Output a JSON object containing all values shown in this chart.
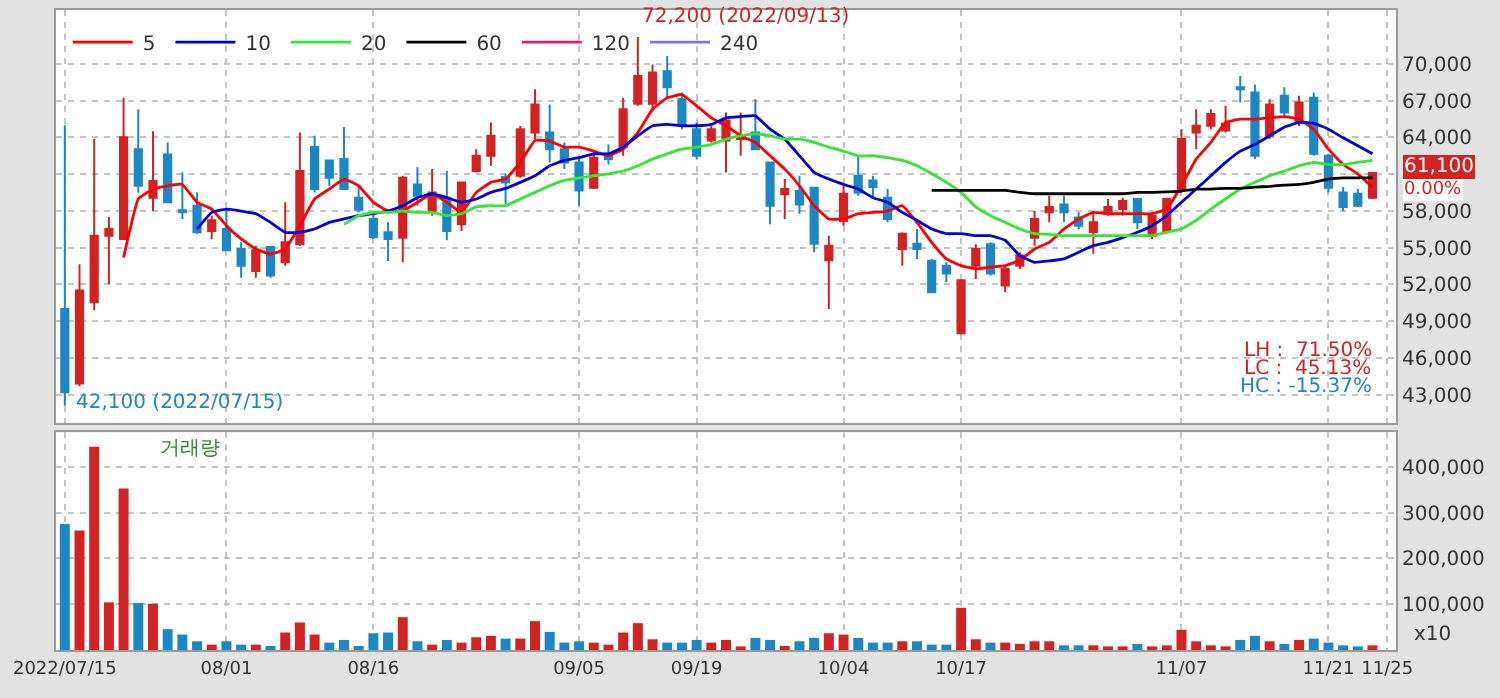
{
  "chart_data": [
    {
      "type": "candlestick",
      "categories": [
        null,
        null,
        null,
        null,
        null,
        null,
        null,
        null,
        null,
        null,
        null,
        null,
        null,
        null,
        null,
        null,
        null,
        null,
        null,
        null,
        null,
        null,
        null,
        null,
        null,
        null,
        null,
        null,
        null,
        null,
        null,
        null,
        null,
        null,
        null,
        null,
        null,
        null,
        null,
        null,
        null,
        null,
        null,
        null,
        null,
        null,
        null,
        null,
        null,
        null,
        null,
        null,
        null,
        null,
        null,
        null,
        null,
        null,
        null,
        null,
        null,
        null,
        null,
        null,
        null,
        null,
        null,
        null,
        null,
        null,
        null,
        null,
        null,
        null,
        null,
        null,
        null,
        null,
        null,
        null,
        null,
        null,
        null,
        null,
        null,
        null,
        null,
        null,
        null,
        null,
        null
      ],
      "ohlc": [
        [
          50000,
          65000,
          42100,
          43200
        ],
        [
          43900,
          53640,
          43700,
          51500
        ],
        [
          50540,
          63860,
          49890,
          55980
        ],
        [
          55980,
          57500,
          52010,
          56520
        ],
        [
          55700,
          67230,
          55700,
          64020
        ],
        [
          63040,
          66300,
          59510,
          60050
        ],
        [
          59080,
          64510,
          57990,
          60430
        ],
        [
          62610,
          63590,
          58700,
          58700
        ],
        [
          58050,
          61140,
          57340,
          57880
        ],
        [
          58420,
          59510,
          56140,
          56250
        ],
        [
          56360,
          57610,
          55700,
          57230
        ],
        [
          56520,
          57990,
          54730,
          54780
        ],
        [
          54890,
          55430,
          52550,
          53530
        ],
        [
          53100,
          55160,
          52550,
          54780
        ],
        [
          55050,
          55160,
          52550,
          52720
        ],
        [
          53800,
          58700,
          53530,
          55430
        ],
        [
          55270,
          64400,
          55160,
          61250
        ],
        [
          63210,
          64130,
          59510,
          59780
        ],
        [
          62120,
          62120,
          60050,
          60700
        ],
        [
          62230,
          64840,
          59780,
          59780
        ],
        [
          59080,
          60050,
          57880,
          58100
        ],
        [
          57340,
          57880,
          55700,
          55870
        ],
        [
          56250,
          57070,
          53910,
          55700
        ],
        [
          55810,
          60870,
          53800,
          60700
        ],
        [
          60160,
          61570,
          58420,
          59240
        ],
        [
          57990,
          61410,
          57610,
          59510
        ],
        [
          59080,
          61250,
          55600,
          56360
        ],
        [
          56900,
          60320,
          56360,
          60320
        ],
        [
          61250,
          63040,
          61140,
          62500
        ],
        [
          62500,
          65210,
          61680,
          64130
        ],
        [
          60760,
          61030,
          58530,
          60320
        ],
        [
          60870,
          64940,
          60700,
          64670
        ],
        [
          64400,
          67930,
          63860,
          66680
        ],
        [
          64400,
          66680,
          61960,
          63040
        ],
        [
          63040,
          63590,
          61410,
          61960
        ],
        [
          61960,
          62230,
          58420,
          59670
        ],
        [
          59890,
          62770,
          59780,
          62340
        ],
        [
          62660,
          63420,
          61790,
          62230
        ],
        [
          63210,
          67230,
          62500,
          66300
        ],
        [
          66740,
          72200,
          66580,
          69020
        ],
        [
          66740,
          69950,
          66140,
          69290
        ],
        [
          69400,
          70650,
          67120,
          68100
        ],
        [
          67120,
          67660,
          64670,
          64950
        ],
        [
          64670,
          65210,
          62230,
          62500
        ],
        [
          63750,
          64940,
          63590,
          64670
        ],
        [
          63750,
          66030,
          61140,
          65380
        ],
        [
          63860,
          66030,
          62500,
          64130
        ],
        [
          64400,
          67120,
          63040,
          63040
        ],
        [
          61960,
          61960,
          56900,
          58420
        ],
        [
          59350,
          60600,
          57340,
          59780
        ],
        [
          59620,
          60870,
          57770,
          58530
        ],
        [
          59890,
          59890,
          54620,
          55320
        ],
        [
          53970,
          55980,
          50000,
          55160
        ],
        [
          57170,
          60050,
          56790,
          59400
        ],
        [
          60870,
          62500,
          59240,
          59510
        ],
        [
          60490,
          60870,
          58970,
          59950
        ],
        [
          59080,
          59780,
          57070,
          57340
        ],
        [
          54890,
          56250,
          53530,
          56140
        ],
        [
          55320,
          56520,
          54080,
          54890
        ],
        [
          53910,
          54080,
          51360,
          51360
        ],
        [
          53530,
          53800,
          52170,
          52880
        ],
        [
          48010,
          52340,
          47900,
          52340
        ],
        [
          53530,
          55270,
          52450,
          54890
        ],
        [
          55270,
          55430,
          52720,
          52880
        ],
        [
          51900,
          53530,
          51360,
          53260
        ],
        [
          53530,
          54620,
          53260,
          54350
        ],
        [
          55810,
          57990,
          55160,
          57340
        ],
        [
          57880,
          59240,
          57070,
          58310
        ],
        [
          58530,
          59240,
          57070,
          57880
        ],
        [
          57450,
          57880,
          56520,
          56790
        ],
        [
          56250,
          57880,
          54510,
          57070
        ],
        [
          57880,
          58970,
          57610,
          58310
        ],
        [
          58150,
          59080,
          57610,
          58800
        ],
        [
          58970,
          58970,
          56520,
          57070
        ],
        [
          55980,
          57880,
          55700,
          57610
        ],
        [
          56360,
          59080,
          56250,
          58970
        ],
        [
          59780,
          64670,
          59510,
          63860
        ],
        [
          64400,
          66300,
          63040,
          64950
        ],
        [
          64950,
          66300,
          64670,
          65920
        ],
        [
          64560,
          66580,
          64400,
          65110
        ],
        [
          68100,
          69020,
          66850,
          67940
        ],
        [
          67660,
          68320,
          62230,
          62500
        ],
        [
          64130,
          67120,
          63860,
          66680
        ],
        [
          67390,
          68100,
          65760,
          66030
        ],
        [
          65210,
          67390,
          64940,
          66850
        ],
        [
          67230,
          67660,
          62500,
          62660
        ],
        [
          62500,
          62660,
          59510,
          59890
        ],
        [
          59510,
          59950,
          57990,
          58310
        ],
        [
          59400,
          59780,
          58310,
          58420
        ],
        [
          59080,
          61100,
          58970,
          61100
        ],
        null
      ],
      "colors": [
        "#1b87c4",
        "#d32222",
        "#d32222",
        "#d32222",
        "#d32222",
        "#1b87c4",
        "#d32222",
        "#1b87c4",
        "#1b87c4",
        "#1b87c4",
        "#d32222",
        "#1b87c4",
        "#1b87c4",
        "#d32222",
        "#1b87c4",
        "#d32222",
        "#d32222",
        "#1b87c4",
        "#1b87c4",
        "#1b87c4",
        "#1b87c4",
        "#1b87c4",
        "#1b87c4",
        "#d32222",
        "#1b87c4",
        "#d32222",
        "#1b87c4",
        "#d32222",
        "#d32222",
        "#d32222",
        "#1b87c4",
        "#d32222",
        "#d32222",
        "#1b87c4",
        "#1b87c4",
        "#1b87c4",
        "#d32222",
        "#1b87c4",
        "#d32222",
        "#d32222",
        "#d32222",
        "#1b87c4",
        "#1b87c4",
        "#1b87c4",
        "#d32222",
        "#d32222",
        "#d32222",
        "#1b87c4",
        "#1b87c4",
        "#d32222",
        "#1b87c4",
        "#1b87c4",
        "#d32222",
        "#d32222",
        "#1b87c4",
        "#1b87c4",
        "#1b87c4",
        "#d32222",
        "#1b87c4",
        "#1b87c4",
        "#1b87c4",
        "#d32222",
        "#d32222",
        "#1b87c4",
        "#d32222",
        "#d32222",
        "#d32222",
        "#d32222",
        "#1b87c4",
        "#1b87c4",
        "#d32222",
        "#d32222",
        "#d32222",
        "#1b87c4",
        "#d32222",
        "#d32222",
        "#d32222",
        "#d32222",
        "#d32222",
        "#d32222",
        "#1b87c4",
        "#1b87c4",
        "#d32222",
        "#1b87c4",
        "#d32222",
        "#1b87c4",
        "#1b87c4",
        "#1b87c4",
        "#1b87c4",
        "#d32222",
        null
      ],
      "series": [
        {
          "type": "line",
          "name": "5",
          "color": "#ff0000",
          "values": [
            null,
            null,
            null,
            null,
            54190,
            58970,
            59780,
            60050,
            60160,
            58700,
            58150,
            56790,
            55710,
            54890,
            54460,
            54890,
            56790,
            58970,
            59780,
            60600,
            60050,
            58700,
            57990,
            57990,
            58700,
            59400,
            58700,
            57880,
            59510,
            60330,
            60600,
            61960,
            63750,
            63700,
            63200,
            63200,
            62880,
            62500,
            63040,
            64400,
            66300,
            67230,
            67500,
            66580,
            65600,
            64950,
            64130,
            63590,
            62500,
            61410,
            60050,
            58420,
            57340,
            57340,
            57770,
            57880,
            57990,
            58420,
            57060,
            55430,
            54080,
            53530,
            53260,
            53420,
            53530,
            53970,
            54890,
            55430,
            56520,
            57340,
            57880,
            57770,
            57770,
            57770,
            57770,
            58150,
            60050,
            62230,
            63590,
            65220,
            65490,
            65490,
            65600,
            65700,
            65490,
            64670,
            63040,
            61790,
            61030,
            59940,
            null
          ]
        },
        {
          "type": "line",
          "name": "10",
          "color": "#0000dd",
          "values": [
            null,
            null,
            null,
            null,
            null,
            null,
            null,
            null,
            null,
            56520,
            57880,
            58150,
            57990,
            57770,
            57060,
            56250,
            56250,
            56520,
            57060,
            57340,
            57610,
            57770,
            57990,
            58420,
            59080,
            59400,
            59080,
            58700,
            58970,
            59510,
            59840,
            60330,
            60870,
            61680,
            62120,
            62340,
            62660,
            62660,
            63200,
            64130,
            64950,
            65060,
            64950,
            64950,
            65060,
            65600,
            65700,
            65760,
            64670,
            63860,
            62500,
            61140,
            60600,
            60160,
            59780,
            59080,
            58700,
            57880,
            57230,
            56520,
            56140,
            56140,
            55980,
            55980,
            55600,
            54350,
            53800,
            53910,
            54080,
            54620,
            55160,
            55430,
            55820,
            56250,
            56790,
            57610,
            58700,
            59780,
            60870,
            61960,
            62880,
            63420,
            64130,
            64840,
            65220,
            65160,
            64670,
            63970,
            63310,
            62660,
            null
          ]
        },
        {
          "type": "line",
          "name": "20",
          "color": "#33e633",
          "values": [
            null,
            null,
            null,
            null,
            null,
            null,
            null,
            null,
            null,
            null,
            null,
            null,
            null,
            null,
            null,
            null,
            null,
            null,
            null,
            56900,
            57610,
            57880,
            57880,
            57990,
            57880,
            57880,
            57610,
            57770,
            58320,
            58420,
            58420,
            58970,
            59510,
            60050,
            60490,
            60700,
            60870,
            61030,
            61250,
            61680,
            62230,
            62660,
            63040,
            63200,
            63420,
            63860,
            64130,
            64290,
            64130,
            63860,
            63860,
            63590,
            63200,
            62880,
            62500,
            62500,
            62340,
            62120,
            61680,
            61030,
            60330,
            59510,
            58320,
            57610,
            57060,
            56520,
            56140,
            56090,
            55980,
            55980,
            55980,
            55980,
            55980,
            55980,
            55980,
            56250,
            56520,
            57230,
            58150,
            58970,
            59780,
            60330,
            60870,
            61250,
            61680,
            61960,
            61790,
            61790,
            61960,
            62120,
            null
          ]
        },
        {
          "type": "line",
          "name": "60",
          "color": "#000000",
          "values": [
            null,
            null,
            null,
            null,
            null,
            null,
            null,
            null,
            null,
            null,
            null,
            null,
            null,
            null,
            null,
            null,
            null,
            null,
            null,
            null,
            null,
            null,
            null,
            null,
            null,
            null,
            null,
            null,
            null,
            null,
            null,
            null,
            null,
            null,
            null,
            null,
            null,
            null,
            null,
            null,
            null,
            null,
            null,
            null,
            null,
            null,
            null,
            null,
            null,
            null,
            null,
            null,
            null,
            null,
            null,
            null,
            null,
            null,
            null,
            59670,
            59670,
            59670,
            59670,
            59670,
            59670,
            59510,
            59400,
            59400,
            59400,
            59400,
            59400,
            59400,
            59400,
            59510,
            59510,
            59560,
            59620,
            59780,
            59780,
            59840,
            59840,
            59940,
            60000,
            60110,
            60160,
            60330,
            60600,
            60700,
            60700,
            60700,
            null
          ]
        },
        {
          "type": "line",
          "name": "120",
          "color": "#e8187a",
          "values": [
            null,
            null,
            null,
            null,
            null,
            null,
            null,
            null,
            null,
            null,
            null,
            null,
            null,
            null,
            null,
            null,
            null,
            null,
            null,
            null,
            null,
            null,
            null,
            null,
            null,
            null,
            null,
            null,
            null,
            null,
            null,
            null,
            null,
            null,
            null,
            null,
            null,
            null,
            null,
            null,
            null,
            null,
            null,
            null,
            null,
            null,
            null,
            null,
            null,
            null,
            null,
            null,
            null,
            null,
            null,
            null,
            null,
            null,
            null,
            null,
            null,
            null,
            null,
            null,
            null,
            null,
            null,
            null,
            null,
            null,
            null,
            null,
            null,
            null,
            null,
            null,
            null,
            null,
            null,
            null,
            null,
            null,
            null,
            null,
            null,
            null,
            null,
            null,
            null,
            null,
            null
          ]
        },
        {
          "type": "line",
          "name": "240",
          "color": "#8a6ee0",
          "values": [
            null,
            null,
            null,
            null,
            null,
            null,
            null,
            null,
            null,
            null,
            null,
            null,
            null,
            null,
            null,
            null,
            null,
            null,
            null,
            null,
            null,
            null,
            null,
            null,
            null,
            null,
            null,
            null,
            null,
            null,
            null,
            null,
            null,
            null,
            null,
            null,
            null,
            null,
            null,
            null,
            null,
            null,
            null,
            null,
            null,
            null,
            null,
            null,
            null,
            null,
            null,
            null,
            null,
            null,
            null,
            null,
            null,
            null,
            null,
            null,
            null,
            null,
            null,
            null,
            null,
            null,
            null,
            null,
            null,
            null,
            null,
            null,
            null,
            null,
            null,
            null,
            null,
            null,
            null,
            null,
            null,
            null,
            null,
            null,
            null,
            null,
            null,
            null,
            null,
            null,
            null
          ]
        }
      ],
      "ylim": [
        40700,
        74400
      ],
      "yticks": [
        {
          "value": 43000,
          "label": "43,000"
        },
        {
          "value": 46000,
          "label": "46,000"
        },
        {
          "value": 49000,
          "label": "49,000"
        },
        {
          "value": 52000,
          "label": "52,000"
        },
        {
          "value": 55000,
          "label": "55,000"
        },
        {
          "value": 58000,
          "label": "58,000"
        },
        {
          "value": 61000,
          "label": null
        },
        {
          "value": 64000,
          "label": "64,000"
        },
        {
          "value": 67000,
          "label": "67,000"
        },
        {
          "value": 70000,
          "label": "70,000"
        }
      ],
      "annotations": [
        "72,200 (2022/09/13)",
        "42,100 (2022/07/15)",
        "61,100",
        "0.00%",
        "LH :  71.50%",
        "LC :  45.13%",
        "HC : -15.37%"
      ],
      "grid": true,
      "legend": "top left",
      "tick_labels": "y"
    },
    {
      "type": "bar",
      "title": "거래량",
      "categories": [
        "2022/07/15",
        null,
        null,
        null,
        null,
        null,
        null,
        null,
        null,
        null,
        null,
        "08/01",
        null,
        null,
        null,
        null,
        null,
        null,
        null,
        null,
        null,
        "08/16",
        null,
        null,
        null,
        null,
        null,
        null,
        null,
        null,
        null,
        null,
        null,
        null,
        null,
        "09/05",
        null,
        null,
        null,
        null,
        null,
        null,
        null,
        "09/19",
        null,
        null,
        null,
        null,
        null,
        null,
        null,
        null,
        null,
        "10/04",
        null,
        null,
        null,
        null,
        null,
        null,
        null,
        "10/17",
        null,
        null,
        null,
        null,
        null,
        null,
        null,
        null,
        null,
        null,
        null,
        null,
        null,
        null,
        "11/07",
        null,
        null,
        null,
        null,
        null,
        null,
        null,
        null,
        null,
        "11/21",
        null,
        null,
        null,
        "11/25"
      ],
      "values": [
        275000,
        260600,
        443600,
        104000,
        352800,
        102500,
        101000,
        45400,
        33700,
        19000,
        11700,
        19000,
        11700,
        11700,
        8800,
        38100,
        60000,
        33700,
        16100,
        22000,
        8800,
        36600,
        38100,
        71700,
        19000,
        11700,
        22000,
        16100,
        27800,
        30700,
        24900,
        24900,
        63000,
        39500,
        16100,
        19000,
        16100,
        11700,
        38100,
        58600,
        23400,
        16100,
        16100,
        22000,
        16100,
        22000,
        7300,
        26400,
        22000,
        8800,
        19000,
        26400,
        36600,
        33700,
        26400,
        16100,
        16100,
        19000,
        19000,
        11700,
        11700,
        92200,
        23400,
        16100,
        16100,
        13200,
        19000,
        19000,
        10200,
        10200,
        10200,
        7300,
        4400,
        13200,
        4400,
        10200,
        43900,
        19000,
        10200,
        7300,
        22000,
        30700,
        19000,
        13200,
        22000,
        24900,
        16100,
        10200,
        7300,
        10200,
        null
      ],
      "colors": [
        "#1b87c4",
        "#d32222",
        "#d32222",
        "#d32222",
        "#d32222",
        "#1b87c4",
        "#d32222",
        "#1b87c4",
        "#1b87c4",
        "#1b87c4",
        "#d32222",
        "#1b87c4",
        "#1b87c4",
        "#d32222",
        "#1b87c4",
        "#d32222",
        "#d32222",
        "#d32222",
        "#1b87c4",
        "#1b87c4",
        "#1b87c4",
        "#1b87c4",
        "#1b87c4",
        "#d32222",
        "#1b87c4",
        "#d32222",
        "#1b87c4",
        "#d32222",
        "#d32222",
        "#d32222",
        "#1b87c4",
        "#d32222",
        "#d32222",
        "#1b87c4",
        "#1b87c4",
        "#1b87c4",
        "#d32222",
        "#d32222",
        "#d32222",
        "#d32222",
        "#d32222",
        "#1b87c4",
        "#1b87c4",
        "#1b87c4",
        "#d32222",
        "#d32222",
        "#d32222",
        "#1b87c4",
        "#1b87c4",
        "#d32222",
        "#1b87c4",
        "#1b87c4",
        "#d32222",
        "#d32222",
        "#1b87c4",
        "#1b87c4",
        "#1b87c4",
        "#d32222",
        "#1b87c4",
        "#1b87c4",
        "#1b87c4",
        "#d32222",
        "#d32222",
        "#1b87c4",
        "#d32222",
        "#d32222",
        "#d32222",
        "#d32222",
        "#1b87c4",
        "#1b87c4",
        "#d32222",
        "#d32222",
        "#d32222",
        "#1b87c4",
        "#d32222",
        "#d32222",
        "#d32222",
        "#d32222",
        "#d32222",
        "#d32222",
        "#1b87c4",
        "#1b87c4",
        "#d32222",
        "#1b87c4",
        "#d32222",
        "#1b87c4",
        "#1b87c4",
        "#1b87c4",
        "#1b87c4",
        "#d32222",
        null
      ],
      "ylim": [
        0,
        475000
      ],
      "yticks": [
        {
          "value": 100000,
          "label": "100,000"
        },
        {
          "value": 200000,
          "label": "200,000"
        },
        {
          "value": 300000,
          "label": "300,000"
        },
        {
          "value": 400000,
          "label": "400,000"
        }
      ],
      "annotations": [
        "x10"
      ],
      "grid": true
    }
  ]
}
